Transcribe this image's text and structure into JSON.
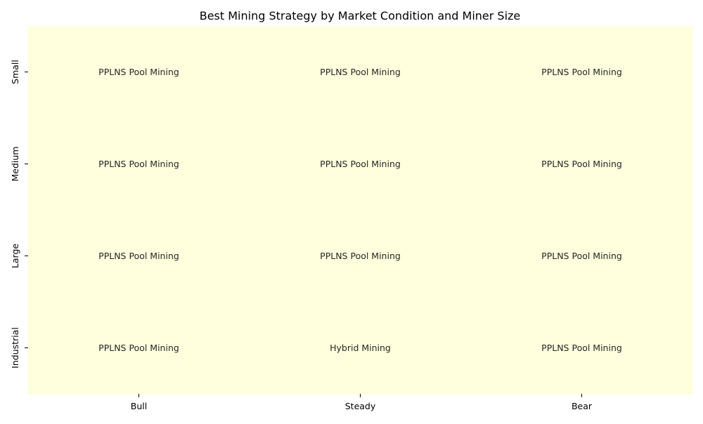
{
  "chart_data": {
    "type": "heatmap",
    "title": "Best Mining Strategy by Market Condition and Miner Size",
    "xlabel": "",
    "ylabel": "",
    "columns": [
      "Bull",
      "Steady",
      "Bear"
    ],
    "rows": [
      "Small",
      "Medium",
      "Large",
      "Industrial"
    ],
    "cells": [
      [
        "PPLNS Pool Mining",
        "PPLNS Pool Mining",
        "PPLNS Pool Mining"
      ],
      [
        "PPLNS Pool Mining",
        "PPLNS Pool Mining",
        "PPLNS Pool Mining"
      ],
      [
        "PPLNS Pool Mining",
        "PPLNS Pool Mining",
        "PPLNS Pool Mining"
      ],
      [
        "PPLNS Pool Mining",
        "Hybrid Mining",
        "PPLNS Pool Mining"
      ]
    ],
    "cell_color": "#ffffdd",
    "grid": false,
    "colorbar": false
  }
}
